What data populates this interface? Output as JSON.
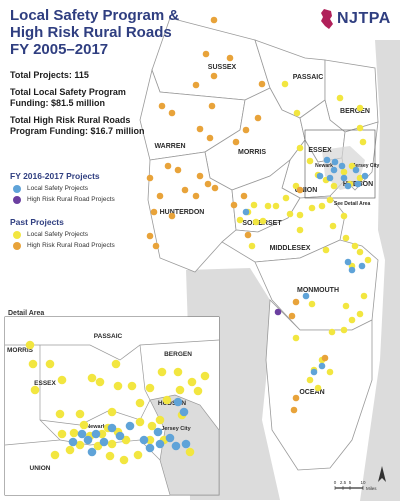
{
  "title_lines": [
    "Local Safety Program &",
    "High Risk Rural Roads",
    "FY 2005–2017"
  ],
  "brand": "NJTPA",
  "stats": [
    "Total Projects: 115",
    "Total Local Safety Program Funding: $81.5 million",
    "Total High Risk Rural Roads Program Funding: $16.7 million"
  ],
  "legend": [
    {
      "heading": "FY 2016-2017 Projects",
      "items": [
        {
          "label": "Local Safety Projects",
          "color": "#5fa3d8"
        },
        {
          "label": "High Risk Rural Road Projects",
          "color": "#6b3fa0"
        }
      ]
    },
    {
      "heading": "Past Projects",
      "items": [
        {
          "label": "Local Safety Projects",
          "color": "#f2e640"
        },
        {
          "label": "High Risk Rural Road Projects",
          "color": "#e8a33a"
        }
      ]
    }
  ],
  "detail_area_label": "Detail Area",
  "see_detail_label": "See Detail Area",
  "counties": [
    "SUSSEX",
    "PASSAIC",
    "BERGEN",
    "WARREN",
    "MORRIS",
    "ESSEX",
    "HUDSON",
    "UNION",
    "HUNTERDON",
    "SOMERSET",
    "MIDDLESEX",
    "MONMOUTH",
    "OCEAN"
  ],
  "cities": [
    "Newark",
    "Jersey City"
  ],
  "detail_counties": [
    "PASSAIC",
    "BERGEN",
    "MORRIS",
    "ESSEX",
    "HUDSON",
    "UNION"
  ],
  "detail_cities": [
    "Newark",
    "Jersey City"
  ],
  "scale": {
    "ticks": [
      "0",
      "2.5",
      "5",
      "10"
    ],
    "unit": "Miles"
  },
  "colors": {
    "land": "#ffffff",
    "outside": "#dcdcdc",
    "water": "#c9c9c9",
    "border": "#9a9a9a",
    "title": "#2f3e80",
    "urban": "#d6d6d6"
  },
  "icon_names": [
    "nj-state-icon",
    "north-arrow-icon"
  ]
}
